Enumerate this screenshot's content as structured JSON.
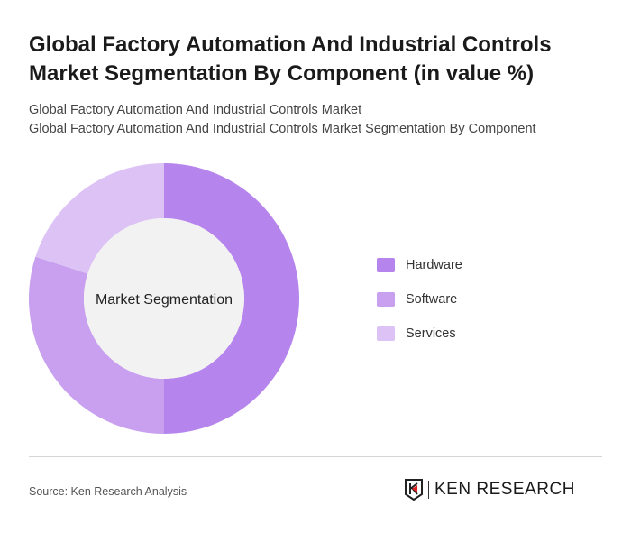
{
  "title": "Global Factory Automation And Industrial Controls Market Segmentation By Component (in value %)",
  "subtitle_lines": [
    "Global Factory Automation And Industrial Controls Market",
    "Global Factory Automation And Industrial Controls Market Segmentation By Component"
  ],
  "chart_data": {
    "type": "pie",
    "variant": "donut",
    "center_label": "Market Segmentation",
    "categories": [
      "Hardware",
      "Software",
      "Services"
    ],
    "values": [
      50,
      30,
      20
    ],
    "colors": [
      "#b584ec",
      "#c8a0ef",
      "#dcc2f5"
    ],
    "legend_position": "right"
  },
  "footer": {
    "source": "Source: Ken Research Analysis",
    "logo_text": "KEN RESEARCH"
  }
}
